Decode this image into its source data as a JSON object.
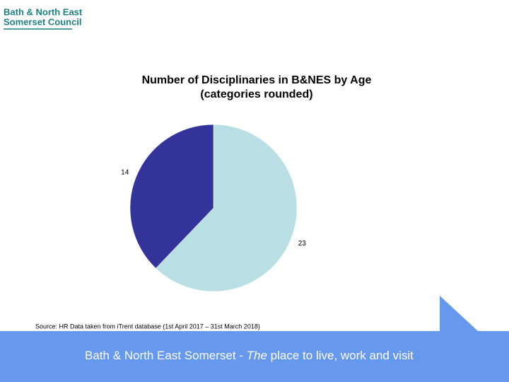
{
  "logo": {
    "line1": "Bath & North East",
    "line2": "Somerset Council"
  },
  "chart_data": {
    "type": "pie",
    "title": "Number of Disciplinaries in B&NES by Age",
    "subtitle": "(categories rounded)",
    "values": [
      23,
      14
    ],
    "colors": [
      "#b9dfe4",
      "#333399"
    ],
    "source": "Source: HR Data taken from iTrent database (1st April 2017 – 31st March 2018)"
  },
  "footer": {
    "text_before": "Bath & North East Somerset - ",
    "emphasis": "The",
    "text_after": " place to live, work and visit"
  }
}
